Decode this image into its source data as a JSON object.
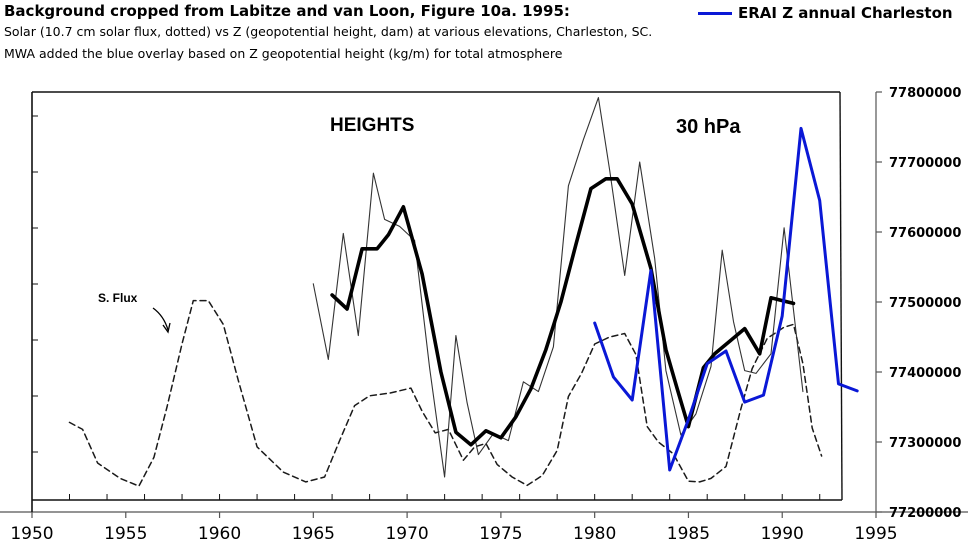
{
  "header": {
    "title": "Background cropped from Labitze and van Loon, Figure 10a. 1995:",
    "line2": "Solar (10.7 cm solar flux, dotted) vs Z (geopotential height, dam) at various elevations, Charleston, SC.",
    "line3": "MWA added the blue overlay based on Z geopotential height  (kg/m) for total atmosphere"
  },
  "chart_data": {
    "type": "line",
    "title": "",
    "xlabel": "",
    "ylabel": "",
    "xlim": [
      1950,
      1995
    ],
    "ylim": [
      77200000,
      77800000
    ],
    "x_ticks": [
      "1950",
      "1955",
      "1960",
      "1965",
      "1970",
      "1975",
      "1980",
      "1985",
      "1990",
      "1995"
    ],
    "y_ticks": [
      "77200000",
      "77300000",
      "77400000",
      "77500000",
      "77600000",
      "77700000",
      "77800000"
    ],
    "legend": {
      "position": "top-right",
      "entries": [
        "ERAI Z annual Charleston"
      ]
    },
    "annotations": {
      "panel_label": "HEIGHTS",
      "pressure_label": "30 hPa",
      "flux_label": "S. Flux"
    },
    "colors": {
      "overlay": "#0a18d6",
      "background": "#1a1a1a"
    },
    "series": [
      {
        "name": "ERAI Z annual Charleston",
        "style": "solid-blue",
        "x": [
          1980,
          1981,
          1982,
          1983,
          1984,
          1985,
          1986,
          1987,
          1988,
          1989,
          1990,
          1991,
          1992,
          1993,
          1994
        ],
        "y": [
          77470000,
          77393000,
          77360000,
          77545000,
          77260000,
          77332000,
          77412000,
          77430000,
          77357000,
          77367000,
          77480000,
          77748000,
          77645000,
          77383000,
          77373000
        ]
      },
      {
        "name": "",
        "style": "dashed",
        "x": [
          1952,
          1952.7,
          1953.5,
          1954.7,
          1955.7,
          1956.5,
          1957.2,
          1958,
          1958.6,
          1959.4,
          1960.2,
          1961,
          1962,
          1963.4,
          1964.6,
          1965.6,
          1966.4,
          1967.2,
          1968,
          1969.1,
          1970.2,
          1970.8,
          1971.5,
          1972.2,
          1973,
          1973.6,
          1974.2,
          1974.8,
          1975.6,
          1976.4,
          1977.2,
          1978,
          1978.6,
          1979.3,
          1980,
          1980.8,
          1981.6,
          1982.2,
          1982.8,
          1983.4,
          1984.2,
          1985,
          1985.6,
          1986.2,
          1987,
          1987.8,
          1988.4,
          1989.2,
          1990.1,
          1990.6,
          1991.1,
          1991.6,
          1992.1
        ],
        "y": [
          77328000,
          77318000,
          77270000,
          77248000,
          77237000,
          77278000,
          77350000,
          77440000,
          77502000,
          77502000,
          77468000,
          77388000,
          77293000,
          77257000,
          77243000,
          77250000,
          77302000,
          77352000,
          77366000,
          77370000,
          77377000,
          77344000,
          77313000,
          77318000,
          77274000,
          77293000,
          77298000,
          77268000,
          77250000,
          77238000,
          77252000,
          77288000,
          77365000,
          77398000,
          77440000,
          77450000,
          77455000,
          77425000,
          77322000,
          77300000,
          77283000,
          77244000,
          77243000,
          77248000,
          77265000,
          77348000,
          77405000,
          77448000,
          77464000,
          77468000,
          77412000,
          77320000,
          77280000
        ]
      },
      {
        "name": "",
        "style": "thin",
        "x": [
          1965,
          1965.8,
          1966.6,
          1967.4,
          1968.2,
          1968.8,
          1969.6,
          1970.4,
          1971.2,
          1972,
          1972.6,
          1973.2,
          1973.8,
          1974.6,
          1975.4,
          1976.2,
          1977,
          1977.8,
          1978.6,
          1979.4,
          1980.2,
          1980.8,
          1981.6,
          1982.4,
          1983.2,
          1983.8,
          1984.6,
          1985.4,
          1986.2,
          1986.8,
          1987.4,
          1988,
          1988.6,
          1989.4,
          1990.1,
          1990.5,
          1991.1
        ],
        "y": [
          77526000,
          77418000,
          77598000,
          77452000,
          77684000,
          77618000,
          77608000,
          77588000,
          77406000,
          77250000,
          77452000,
          77356000,
          77282000,
          77312000,
          77302000,
          77386000,
          77372000,
          77436000,
          77666000,
          77732000,
          77792000,
          77688000,
          77538000,
          77700000,
          77562000,
          77402000,
          77310000,
          77340000,
          77408000,
          77574000,
          77472000,
          77402000,
          77398000,
          77426000,
          77606000,
          77512000,
          77372000
        ]
      },
      {
        "name": "",
        "style": "thick",
        "x": [
          1966,
          1966.8,
          1967.6,
          1968.4,
          1969,
          1969.8,
          1970.8,
          1971.8,
          1972.6,
          1973.4,
          1974.2,
          1975,
          1975.8,
          1976.6,
          1977.4,
          1978.2,
          1979,
          1979.8,
          1980.6,
          1981.2,
          1982,
          1983,
          1983.8,
          1984.4,
          1985,
          1985.8,
          1986.4,
          1987.2,
          1988,
          1988.8,
          1989.4,
          1990,
          1990.6
        ],
        "y": [
          77510000,
          77490000,
          77576000,
          77576000,
          77596000,
          77636000,
          77540000,
          77400000,
          77314000,
          77296000,
          77316000,
          77306000,
          77336000,
          77376000,
          77432000,
          77500000,
          77582000,
          77662000,
          77676000,
          77676000,
          77640000,
          77548000,
          77432000,
          77376000,
          77322000,
          77406000,
          77426000,
          77444000,
          77462000,
          77426000,
          77506000,
          77502000,
          77498000
        ]
      }
    ]
  }
}
